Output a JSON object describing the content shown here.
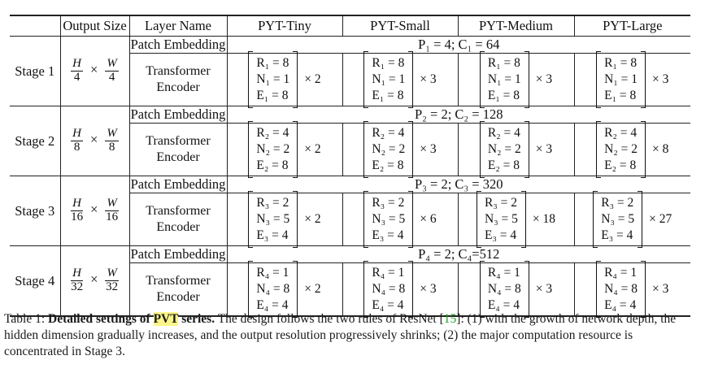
{
  "table": {
    "headers": [
      "",
      "Output Size",
      "Layer Name",
      "PYT-Tiny",
      "PYT-Small",
      "PYT-Medium",
      "PYT-Large"
    ],
    "times_symbol": "×",
    "stages": [
      {
        "label": "Stage 1",
        "output_size": {
          "h_num": "H",
          "h_den": "4",
          "w_num": "W",
          "w_den": "4"
        },
        "embedding_label": "Patch Embedding",
        "embedding_params": "P₁ = 4;   C₁ = 64",
        "encoder_label_1": "Transformer",
        "encoder_label_2": "Encoder",
        "configs": [
          {
            "r": "R₁ = 8",
            "n": "N₁ = 1",
            "e": "E₁ = 8",
            "mult": "× 2"
          },
          {
            "r": "R₁ = 8",
            "n": "N₁ = 1",
            "e": "E₁ = 8",
            "mult": "× 3"
          },
          {
            "r": "R₁ = 8",
            "n": "N₁ = 1",
            "e": "E₁ = 8",
            "mult": "× 3"
          },
          {
            "r": "R₁ = 8",
            "n": "N₁ = 1",
            "e": "E₁ = 8",
            "mult": "× 3"
          }
        ]
      },
      {
        "label": "Stage 2",
        "output_size": {
          "h_num": "H",
          "h_den": "8",
          "w_num": "W",
          "w_den": "8"
        },
        "embedding_label": "Patch Embedding",
        "embedding_params": "P₂ = 2;   C₂ = 128",
        "encoder_label_1": "Transformer",
        "encoder_label_2": "Encoder",
        "configs": [
          {
            "r": "R₂ = 4",
            "n": "N₂ = 2",
            "e": "E₂ = 8",
            "mult": "× 2"
          },
          {
            "r": "R₂ = 4",
            "n": "N₂ = 2",
            "e": "E₂ = 8",
            "mult": "× 3"
          },
          {
            "r": "R₂ = 4",
            "n": "N₂ = 2",
            "e": "E₂ = 8",
            "mult": "× 3"
          },
          {
            "r": "R₂ = 4",
            "n": "N₂ = 2",
            "e": "E₂ = 8",
            "mult": "× 8"
          }
        ]
      },
      {
        "label": "Stage 3",
        "output_size": {
          "h_num": "H",
          "h_den": "16",
          "w_num": "W",
          "w_den": "16"
        },
        "embedding_label": "Patch Embedding",
        "embedding_params": "P₃ = 2;   C₃ = 320",
        "encoder_label_1": "Transformer",
        "encoder_label_2": "Encoder",
        "configs": [
          {
            "r": "R₃ = 2",
            "n": "N₃ = 5",
            "e": "E₃ = 4",
            "mult": "× 2"
          },
          {
            "r": "R₃ = 2",
            "n": "N₃ = 5",
            "e": "E₃ = 4",
            "mult": "× 6"
          },
          {
            "r": "R₃ = 2",
            "n": "N₃ = 5",
            "e": "E₃ = 4",
            "mult": "× 18"
          },
          {
            "r": "R₃ = 2",
            "n": "N₃ = 5",
            "e": "E₃ = 4",
            "mult": "× 27"
          }
        ]
      },
      {
        "label": "Stage 4",
        "output_size": {
          "h_num": "H",
          "h_den": "32",
          "w_num": "W",
          "w_den": "32"
        },
        "embedding_label": "Patch Embedding",
        "embedding_params": "P₄ = 2;   C₄=512",
        "encoder_label_1": "Transformer",
        "encoder_label_2": "Encoder",
        "configs": [
          {
            "r": "R₄ = 1",
            "n": "N₄ = 8",
            "e": "E₄ = 4",
            "mult": "× 2"
          },
          {
            "r": "R₄ = 1",
            "n": "N₄ = 8",
            "e": "E₄ = 4",
            "mult": "× 3"
          },
          {
            "r": "R₄ = 1",
            "n": "N₄ = 8",
            "e": "E₄ = 4",
            "mult": "× 3"
          },
          {
            "r": "R₄ = 1",
            "n": "N₄ = 8",
            "e": "E₄ = 4",
            "mult": "× 3"
          }
        ]
      }
    ]
  },
  "caption": {
    "prefix": "Table 1: ",
    "bold_part1": "Detailed settings of ",
    "highlight": "PVT",
    "bold_part2": " series.",
    "text_before_cite": " The design follows the two rules of ResNet [",
    "cite": "15",
    "text_after_cite": "]: (1) with the growth of network depth, the hidden dimension gradually increases, and the output resolution progressively shrinks; (2) the major computation resource is concentrated in Stage 3."
  },
  "colors": {
    "highlight": "#fbf58a",
    "citation": "#21a021",
    "rule": "#222222"
  }
}
